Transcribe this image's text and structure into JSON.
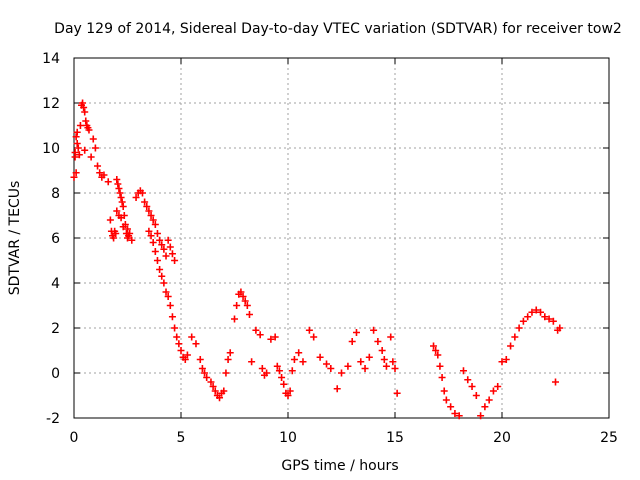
{
  "chart_data": {
    "type": "scatter",
    "title": "Day 129 of 2014, Sidereal Day-to-day VTEC variation (SDTVAR) for receiver tow2",
    "xlabel": "GPS time / hours",
    "ylabel": "SDTVAR / TECUs",
    "xlim": [
      0,
      25
    ],
    "ylim": [
      -2,
      14
    ],
    "xticks": [
      0,
      5,
      10,
      15,
      20,
      25
    ],
    "yticks": [
      -2,
      0,
      2,
      4,
      6,
      8,
      10,
      12,
      14
    ],
    "grid": true,
    "marker": "+",
    "color": "#ff0000",
    "series": [
      {
        "name": "SDTVAR",
        "x": [
          0.0,
          0.05,
          0.1,
          0.15,
          0.2,
          0.25,
          0.3,
          0.35,
          0.4,
          0.45,
          0.5,
          0.55,
          0.6,
          0.65,
          0.7,
          0.05,
          0.1,
          0.15,
          0.5,
          0.8,
          0.9,
          1.0,
          1.1,
          1.2,
          1.3,
          1.4,
          1.6,
          1.7,
          1.75,
          1.8,
          1.85,
          1.9,
          1.95,
          2.0,
          2.05,
          2.1,
          2.15,
          2.2,
          2.25,
          2.3,
          2.35,
          2.4,
          2.45,
          2.5,
          2.55,
          2.6,
          2.0,
          2.1,
          2.2,
          2.3,
          2.5,
          2.7,
          2.9,
          3.0,
          3.1,
          3.2,
          3.3,
          3.4,
          3.5,
          3.6,
          3.7,
          3.8,
          3.9,
          4.0,
          4.1,
          4.2,
          4.3,
          3.5,
          3.6,
          3.7,
          3.8,
          3.9,
          4.0,
          4.1,
          4.2,
          4.3,
          4.4,
          4.5,
          4.6,
          4.7,
          4.4,
          4.5,
          4.6,
          4.7,
          4.8,
          4.9,
          5.0,
          5.1,
          5.2,
          5.3,
          5.5,
          5.7,
          5.9,
          6.0,
          6.1,
          6.2,
          6.4,
          6.5,
          6.6,
          6.7,
          6.8,
          6.9,
          7.0,
          7.1,
          7.2,
          7.3,
          7.5,
          7.6,
          7.7,
          7.8,
          7.9,
          8.0,
          8.1,
          8.2,
          8.3,
          8.5,
          8.7,
          8.8,
          8.9,
          9.0,
          9.2,
          9.4,
          9.5,
          9.6,
          9.7,
          9.8,
          9.9,
          10.0,
          10.1,
          10.2,
          10.3,
          10.5,
          10.7,
          11.0,
          11.2,
          11.5,
          11.8,
          12.0,
          12.3,
          12.5,
          12.8,
          13.0,
          13.2,
          13.4,
          13.6,
          13.8,
          14.0,
          14.2,
          14.4,
          14.5,
          14.6,
          14.8,
          14.9,
          15.0,
          15.1,
          16.8,
          16.9,
          17.0,
          17.1,
          17.2,
          17.3,
          17.4,
          17.6,
          17.8,
          18.0,
          18.2,
          18.4,
          18.6,
          18.8,
          19.0,
          19.2,
          19.4,
          19.6,
          19.8,
          20.0,
          20.2,
          20.4,
          20.6,
          20.8,
          21.0,
          21.2,
          21.4,
          21.6,
          21.8,
          22.0,
          22.2,
          22.4,
          22.5,
          22.6,
          22.7
        ],
        "y": [
          8.7,
          9.8,
          10.5,
          10.7,
          10.0,
          9.7,
          11.0,
          11.9,
          12.0,
          11.8,
          11.6,
          11.2,
          11.0,
          10.9,
          10.8,
          9.6,
          8.9,
          10.2,
          9.9,
          9.6,
          10.4,
          10.0,
          9.2,
          8.9,
          8.7,
          8.8,
          8.5,
          6.8,
          6.3,
          6.1,
          6.0,
          6.3,
          6.2,
          8.6,
          8.4,
          8.2,
          8.0,
          7.8,
          7.6,
          7.4,
          7.0,
          6.6,
          6.2,
          6.0,
          6.1,
          6.2,
          7.2,
          7.0,
          6.9,
          6.5,
          6.4,
          5.9,
          7.8,
          8.0,
          8.1,
          8.0,
          7.6,
          7.4,
          7.2,
          7.0,
          6.8,
          6.6,
          6.2,
          5.9,
          5.7,
          5.5,
          5.2,
          6.3,
          6.1,
          5.8,
          5.4,
          5.0,
          4.6,
          4.3,
          4.0,
          3.6,
          5.9,
          5.6,
          5.3,
          5.0,
          3.4,
          3.0,
          2.5,
          2.0,
          1.6,
          1.3,
          1.0,
          0.7,
          0.6,
          0.8,
          1.6,
          1.3,
          0.6,
          0.2,
          0.0,
          -0.2,
          -0.4,
          -0.6,
          -0.8,
          -1.0,
          -1.1,
          -0.9,
          -0.8,
          0.0,
          0.6,
          0.9,
          2.4,
          3.0,
          3.5,
          3.6,
          3.4,
          3.2,
          3.0,
          2.6,
          0.5,
          1.9,
          1.7,
          0.2,
          -0.1,
          0.0,
          1.5,
          1.6,
          0.3,
          0.1,
          -0.2,
          -0.5,
          -0.9,
          -1.0,
          -0.8,
          0.1,
          0.6,
          0.9,
          0.5,
          1.9,
          1.6,
          0.7,
          0.4,
          0.2,
          -0.7,
          0.0,
          0.3,
          1.4,
          1.8,
          0.5,
          0.2,
          0.7,
          1.9,
          1.4,
          1.0,
          0.6,
          0.3,
          1.6,
          0.5,
          0.2,
          -0.9,
          1.2,
          1.0,
          0.8,
          0.3,
          -0.2,
          -0.8,
          -1.2,
          -1.5,
          -1.8,
          -1.9,
          0.1,
          -0.3,
          -0.6,
          -1.0,
          -1.9,
          -1.5,
          -1.2,
          -0.8,
          -0.6,
          0.5,
          0.6,
          1.2,
          1.6,
          2.0,
          2.3,
          2.5,
          2.7,
          2.8,
          2.7,
          2.5,
          2.4,
          2.3,
          -0.4,
          1.9,
          2.0
        ]
      }
    ]
  }
}
